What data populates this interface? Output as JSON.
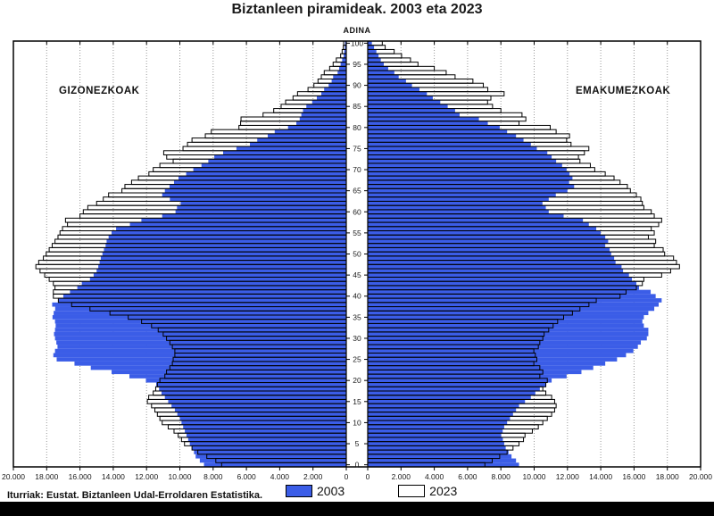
{
  "title": "Biztanleen piramideak. 2003 eta 2023",
  "axis_top_label": "ADINA",
  "left_panel_label": "GIZONEZKOAK",
  "right_panel_label": "EMAKUMEZKOAK",
  "source": "Iturriak: Eustat. Biztanleen Udal-Erroldaren Estatistika.",
  "legend": [
    {
      "label": "2003",
      "color": "#3B5DE7",
      "filled": true
    },
    {
      "label": "2023",
      "color": "#FFFFFF",
      "filled": false
    }
  ],
  "chart_data": {
    "type": "bar",
    "subtype": "population-pyramid",
    "title": "Biztanleen piramideak. 2003 eta 2023",
    "age_axis_label": "ADINA",
    "age_range": [
      0,
      100
    ],
    "xlim": [
      0,
      20000
    ],
    "x_tick_step": 2000,
    "grid": true,
    "grid_color": "#999999",
    "fill_color": "#3B5DE7",
    "outline_color": "#000000",
    "x_tick_labels_left": [
      "20.000",
      "18.000",
      "16.000",
      "14.000",
      "12.000",
      "10.000",
      "8.000",
      "6.000",
      "4.000",
      "2.000",
      "0"
    ],
    "x_tick_labels_right": [
      "0",
      "2.000",
      "4.000",
      "6.000",
      "8.000",
      "10.000",
      "12.000",
      "14.000",
      "16.000",
      "18.000",
      "20.000"
    ],
    "age_tick_labels": [
      "0",
      "5",
      "10",
      "15",
      "20",
      "25",
      "30",
      "35",
      "40",
      "45",
      "50",
      "55",
      "60",
      "65",
      "70",
      "75",
      "80",
      "85",
      "90",
      "95",
      "100"
    ],
    "series": [
      {
        "name": "gizonezkoak-2003",
        "side": "left",
        "year": 2003,
        "style": "fill",
        "values": [
          8550,
          8800,
          9050,
          9150,
          9270,
          9400,
          9500,
          9600,
          9700,
          9800,
          9900,
          10000,
          10150,
          10300,
          10500,
          10700,
          10900,
          11100,
          11250,
          11420,
          12040,
          13030,
          14100,
          15350,
          16330,
          17400,
          17600,
          17500,
          17350,
          17420,
          17500,
          17560,
          17500,
          17460,
          17500,
          17650,
          17580,
          17490,
          17670,
          17310,
          17000,
          16600,
          16160,
          15890,
          15400,
          15180,
          15000,
          14900,
          14820,
          14750,
          14650,
          14560,
          14460,
          14400,
          14280,
          14100,
          13830,
          13000,
          12310,
          11060,
          10260,
          10170,
          9950,
          10600,
          11060,
          10900,
          10620,
          10350,
          10080,
          9620,
          9190,
          8700,
          8290,
          7930,
          7400,
          6600,
          5790,
          5350,
          4720,
          4300,
          3500,
          3000,
          2800,
          2700,
          2600,
          2400,
          2050,
          1770,
          1500,
          1330,
          1060,
          880,
          790,
          520,
          430,
          340,
          250,
          160,
          125,
          90,
          75
        ]
      },
      {
        "name": "emakumezkoak-2003",
        "side": "right",
        "year": 2003,
        "style": "fill",
        "values": [
          9090,
          8910,
          8640,
          8460,
          8290,
          8200,
          8120,
          8020,
          8110,
          8200,
          8375,
          8550,
          8730,
          8910,
          9090,
          9450,
          9800,
          10070,
          10340,
          10700,
          11050,
          11950,
          12840,
          13550,
          14270,
          14980,
          15520,
          15960,
          16230,
          16410,
          16770,
          16860,
          16860,
          16590,
          16500,
          16590,
          16860,
          17215,
          17480,
          17660,
          17300,
          17000,
          16300,
          16140,
          15875,
          15695,
          15340,
          15250,
          14890,
          14805,
          14625,
          14535,
          14270,
          14445,
          14270,
          14000,
          13730,
          13285,
          12930,
          11770,
          10875,
          10700,
          10500,
          10875,
          11300,
          12000,
          12400,
          12100,
          12300,
          12125,
          11950,
          11680,
          11320,
          11050,
          10790,
          10160,
          9800,
          9360,
          8910,
          8375,
          7930,
          7215,
          6680,
          5520,
          5250,
          4805,
          4360,
          3910,
          3555,
          3110,
          2660,
          2300,
          1860,
          1600,
          1230,
          965,
          785,
          650,
          520,
          380,
          250
        ]
      },
      {
        "name": "gizonezkoak-2023",
        "side": "left",
        "year": 2023,
        "style": "outline",
        "values": [
          7490,
          7840,
          8380,
          8920,
          9270,
          9720,
          9900,
          10100,
          10350,
          10700,
          11060,
          11200,
          11350,
          11500,
          11700,
          11950,
          11870,
          11600,
          11450,
          11350,
          11200,
          10900,
          10800,
          10600,
          10450,
          10400,
          10300,
          10300,
          10450,
          10600,
          10800,
          11000,
          11300,
          11700,
          12300,
          13100,
          14200,
          15400,
          16500,
          17300,
          17600,
          17600,
          17500,
          17600,
          17850,
          18120,
          18400,
          18650,
          18480,
          18200,
          18030,
          17850,
          17670,
          17500,
          17320,
          17200,
          17050,
          16750,
          16870,
          16000,
          15800,
          15530,
          15000,
          14600,
          14280,
          13480,
          13300,
          12900,
          12490,
          11860,
          11600,
          11200,
          10400,
          10790,
          10970,
          9810,
          9540,
          9270,
          8470,
          8110,
          6450,
          6350,
          6325,
          5000,
          4360,
          3915,
          3645,
          3200,
          2930,
          2300,
          1945,
          1700,
          1500,
          1325,
          1000,
          790,
          600,
          340,
          250,
          180,
          160
        ]
      },
      {
        "name": "emakumezkoak-2023",
        "side": "right",
        "year": 2023,
        "style": "outline",
        "values": [
          7040,
          7480,
          7930,
          8375,
          8730,
          9090,
          9360,
          9450,
          9890,
          10250,
          10520,
          10790,
          11050,
          11230,
          11320,
          11230,
          11050,
          10700,
          10520,
          10700,
          10790,
          10340,
          10520,
          10340,
          9980,
          10160,
          10070,
          9980,
          10250,
          10340,
          10520,
          10600,
          10875,
          11140,
          11410,
          11770,
          12300,
          12750,
          13290,
          13730,
          15160,
          15520,
          16140,
          16500,
          16590,
          17660,
          18200,
          18730,
          18550,
          18375,
          17840,
          17750,
          17215,
          17300,
          16860,
          17215,
          17035,
          17480,
          17660,
          17215,
          17035,
          16590,
          16500,
          16410,
          16140,
          15780,
          15600,
          15160,
          14800,
          14270,
          13640,
          13375,
          12750,
          12660,
          13020,
          13285,
          12215,
          11950,
          12125,
          11320,
          10965,
          9090,
          9500,
          9270,
          8000,
          7500,
          7200,
          7400,
          8195,
          7215,
          6945,
          6320,
          5250,
          4715,
          4000,
          3020,
          2570,
          2035,
          1590,
          1050,
          875
        ]
      }
    ]
  }
}
